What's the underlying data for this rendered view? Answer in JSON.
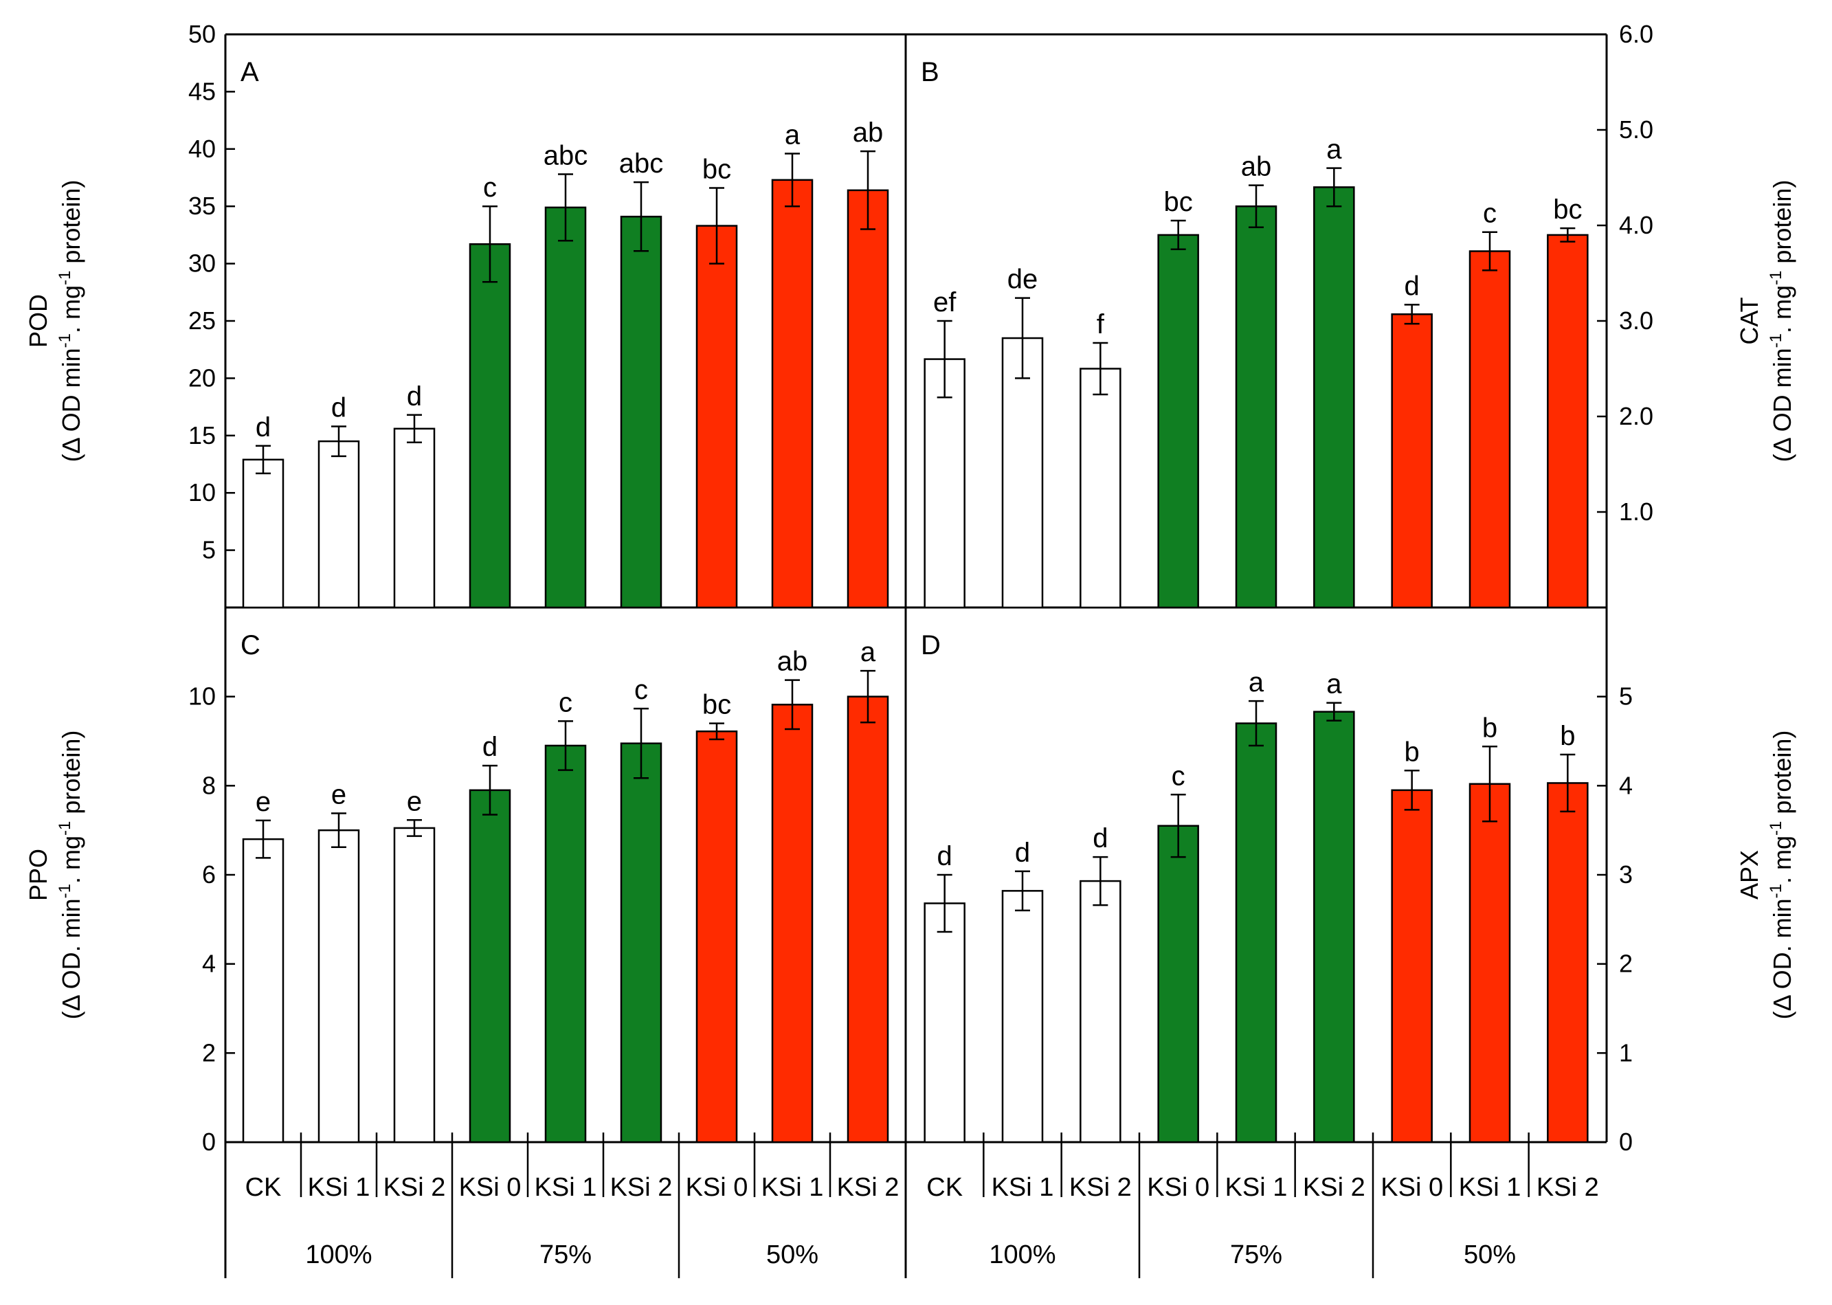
{
  "colors": {
    "white": "#ffffff",
    "green": "#107f22",
    "red": "#ff2b00",
    "axis": "#000000"
  },
  "chart_data": [
    {
      "type": "bar",
      "panel": "A",
      "title": "",
      "ylabel_line1": "POD",
      "ylabel_line2": "(Δ OD min",
      "ylabel_sup1": "-1",
      "ylabel_mid": ". mg",
      "ylabel_sup2": "-1",
      "ylabel_end": " protein)",
      "yaxis_side": "left",
      "ylim": [
        0,
        50
      ],
      "yticks": [
        5,
        10,
        15,
        20,
        25,
        30,
        35,
        40,
        45,
        50
      ],
      "tick_labels": [
        "5",
        "10",
        "15",
        "20",
        "25",
        "30",
        "35",
        "40",
        "45",
        "50"
      ],
      "values": [
        12.9,
        14.5,
        15.6,
        31.7,
        34.9,
        34.1,
        33.3,
        37.3,
        36.4
      ],
      "errors": [
        1.2,
        1.3,
        1.2,
        3.3,
        2.9,
        3.0,
        3.3,
        2.3,
        3.4
      ],
      "letters": [
        "d",
        "d",
        "d",
        "c",
        "abc",
        "abc",
        "bc",
        "a",
        "ab"
      ]
    },
    {
      "type": "bar",
      "panel": "B",
      "ylabel_line1": "CAT",
      "ylabel_line2": "(Δ OD min",
      "ylabel_sup1": "-1",
      "ylabel_mid": ". mg",
      "ylabel_sup2": "-1",
      "ylabel_end": " protein)",
      "yaxis_side": "right",
      "ylim": [
        0,
        6
      ],
      "yticks": [
        1,
        2,
        3,
        4,
        5,
        6
      ],
      "tick_labels": [
        "1.0",
        "2.0",
        "3.0",
        "4.0",
        "5.0",
        "6.0"
      ],
      "values": [
        2.6,
        2.82,
        2.5,
        3.9,
        4.2,
        4.4,
        3.07,
        3.73,
        3.9
      ],
      "errors": [
        0.4,
        0.42,
        0.27,
        0.15,
        0.22,
        0.2,
        0.1,
        0.2,
        0.07
      ],
      "letters": [
        "ef",
        "de",
        "f",
        "bc",
        "ab",
        "a",
        "d",
        "c",
        "bc"
      ]
    },
    {
      "type": "bar",
      "panel": "C",
      "ylabel_line1": "PPO",
      "ylabel_line2": "(Δ OD. min",
      "ylabel_sup1": "-1",
      "ylabel_mid": ". mg",
      "ylabel_sup2": "-1",
      "ylabel_end": " protein)",
      "yaxis_side": "left",
      "ylim": [
        0,
        12
      ],
      "yticks": [
        0,
        2,
        4,
        6,
        8,
        10
      ],
      "tick_labels": [
        "0",
        "2",
        "4",
        "6",
        "8",
        "10"
      ],
      "values": [
        6.8,
        7.0,
        7.05,
        7.9,
        8.9,
        8.95,
        9.22,
        9.82,
        10.0
      ],
      "errors": [
        0.42,
        0.38,
        0.18,
        0.55,
        0.55,
        0.78,
        0.18,
        0.55,
        0.58
      ],
      "letters": [
        "e",
        "e",
        "e",
        "d",
        "c",
        "c",
        "bc",
        "ab",
        "a"
      ]
    },
    {
      "type": "bar",
      "panel": "D",
      "ylabel_line1": "APX",
      "ylabel_line2": "(Δ OD. min",
      "ylabel_sup1": "-1",
      "ylabel_mid": ". mg",
      "ylabel_sup2": "-1",
      "ylabel_end": " protein)",
      "yaxis_side": "right",
      "ylim": [
        0,
        6
      ],
      "yticks": [
        0,
        1,
        2,
        3,
        4,
        5
      ],
      "tick_labels": [
        "0",
        "1",
        "2",
        "3",
        "4",
        "5"
      ],
      "values": [
        2.68,
        2.82,
        2.93,
        3.55,
        4.7,
        4.83,
        3.95,
        4.02,
        4.03
      ],
      "errors": [
        0.32,
        0.22,
        0.27,
        0.35,
        0.25,
        0.1,
        0.22,
        0.42,
        0.32
      ],
      "letters": [
        "d",
        "d",
        "d",
        "c",
        "a",
        "a",
        "b",
        "b",
        "b"
      ]
    }
  ],
  "categories": [
    "CK",
    "KSi 1",
    "KSi 2",
    "KSi 0",
    "KSi 1",
    "KSi 2",
    "KSi 0",
    "KSi 1",
    "KSi 2"
  ],
  "bar_colors": [
    "white",
    "white",
    "white",
    "green",
    "green",
    "green",
    "red",
    "red",
    "red"
  ],
  "groups": [
    "100%",
    "75%",
    "50%"
  ]
}
